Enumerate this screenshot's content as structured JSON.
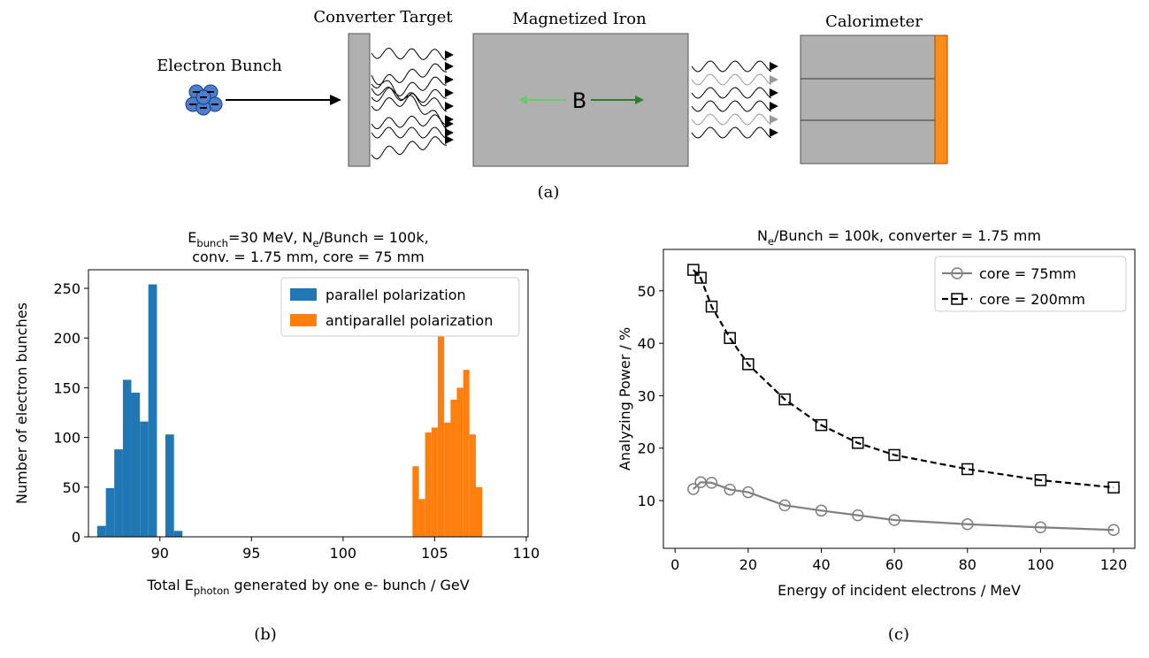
{
  "diagram": {
    "labels": {
      "electron_bunch": "Electron Bunch",
      "converter": "Converter Target",
      "iron": "Magnetized Iron",
      "field": "B",
      "calorimeter": "Calorimeter"
    },
    "caption": "(a)"
  },
  "chart_data": [
    {
      "type": "histogram",
      "caption": "(b)",
      "title": [
        [
          {
            "text": "E"
          },
          {
            "text": "bunch",
            "sub": true
          },
          {
            "text": "=30 MeV, N"
          },
          {
            "text": "e",
            "sub": true
          },
          {
            "text": "/Bunch = 100k,"
          }
        ],
        [
          {
            "text": "conv. = 1.75 mm, core = 75 mm"
          }
        ]
      ],
      "xlabel": [
        {
          "text": "Total E"
        },
        {
          "text": "photon",
          "sub": true
        },
        {
          "text": " generated by one e- bunch / GeV"
        }
      ],
      "ylabel": "Number of electron bunches",
      "xlim": [
        86.1,
        110.1
      ],
      "ylim": [
        0,
        268.7
      ],
      "xticks": [
        90,
        95,
        100,
        105,
        110
      ],
      "yticks": [
        0,
        50,
        100,
        150,
        200,
        250
      ],
      "legend": "upper right",
      "series": [
        {
          "name": "parallel polarization",
          "color": "#1f77b4",
          "bins": [
            86.58,
            87.05,
            87.51,
            87.98,
            88.44,
            88.91,
            89.37,
            89.84,
            90.3,
            90.77,
            91.23
          ],
          "values": [
            11,
            49,
            88,
            158,
            145,
            116,
            254,
            0,
            103,
            6
          ]
        },
        {
          "name": "antiparallel polarization",
          "color": "#ff7f0e",
          "bins": [
            103.79,
            104.14,
            104.48,
            104.83,
            105.17,
            105.52,
            105.87,
            106.21,
            106.56,
            106.9,
            107.25,
            107.6
          ],
          "values": [
            71,
            38,
            105,
            110,
            202,
            115,
            138,
            150,
            168,
            103,
            50
          ]
        }
      ]
    },
    {
      "type": "line",
      "caption": "(c)",
      "title": [
        {
          "text": "N"
        },
        {
          "text": "e",
          "sub": true
        },
        {
          "text": "/Bunch = 100k, converter = 1.75 mm"
        }
      ],
      "xlabel": "Energy of incident electrons / MeV",
      "ylabel": "Analyzing Power / %",
      "xlim": [
        -3.2,
        125.8
      ],
      "ylim": [
        0.9,
        57.9
      ],
      "xticks": [
        0,
        20,
        40,
        60,
        80,
        100,
        120
      ],
      "yticks": [
        10,
        20,
        30,
        40,
        50
      ],
      "legend": "upper right",
      "x": [
        5,
        7,
        10,
        15,
        20,
        30,
        40,
        50,
        60,
        80,
        100,
        120
      ],
      "series": [
        {
          "name": "core = 75mm",
          "color": "#808080",
          "marker": "circle",
          "linestyle": "solid",
          "values": [
            12.2,
            13.5,
            13.4,
            12.1,
            11.6,
            9.1,
            8.1,
            7.2,
            6.3,
            5.5,
            4.9,
            4.4
          ]
        },
        {
          "name": "core = 200mm",
          "color": "#000000",
          "marker": "square",
          "linestyle": "dashed",
          "values": [
            54,
            52.5,
            47,
            41,
            36,
            29.3,
            24.4,
            21,
            18.7,
            16,
            13.9,
            12.5
          ]
        }
      ]
    }
  ]
}
